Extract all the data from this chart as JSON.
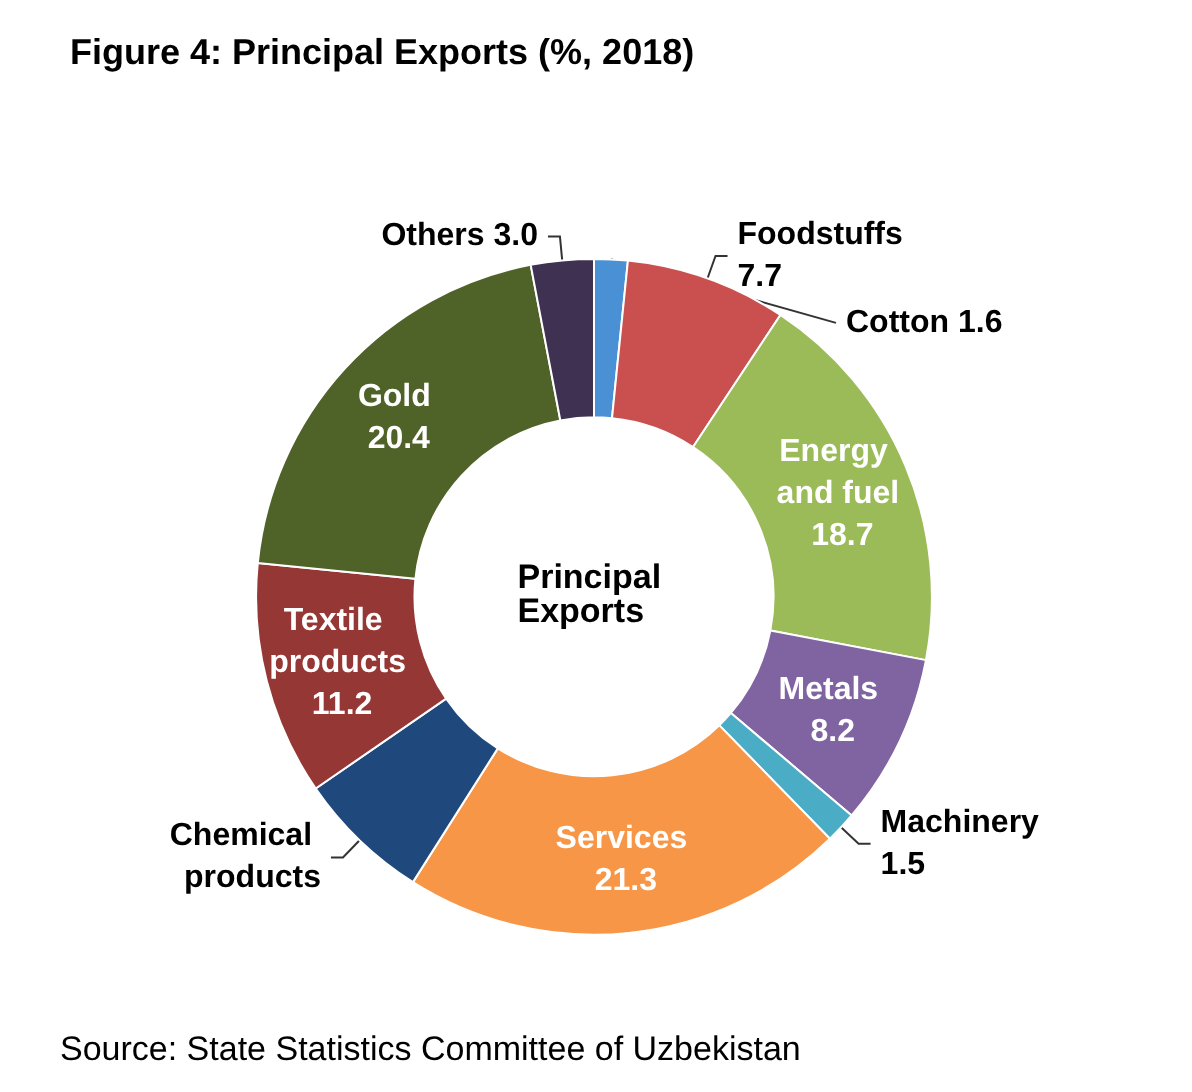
{
  "chart_data": {
    "type": "donut",
    "title": "Figure 4: Principal Exports (%, 2018)",
    "categories": [
      "Cotton",
      "Foodstuffs",
      "Energy and fuel",
      "Metals",
      "Machinery",
      "Services",
      "Chemical products",
      "Textile products",
      "Gold",
      "Others"
    ],
    "values": [
      1.6,
      7.7,
      18.7,
      8.2,
      1.5,
      21.3,
      6.4,
      11.2,
      20.4,
      3.0
    ],
    "value_labels": [
      "1.6",
      "7.7",
      "18.7",
      "8.2",
      "1.5",
      "21.3",
      null,
      "11.2",
      "20.4",
      "3.0"
    ],
    "colors": [
      "#4a90d4",
      "#c9504f",
      "#9bbb59",
      "#8064a2",
      "#4bacc6",
      "#f79646",
      "#1f497d",
      "#953735",
      "#4f6228",
      "#3f3151"
    ],
    "annotations": [
      "Principal Exports",
      "Source: State Statistics Committee of Uzbekistan"
    ],
    "legend": false
  }
}
